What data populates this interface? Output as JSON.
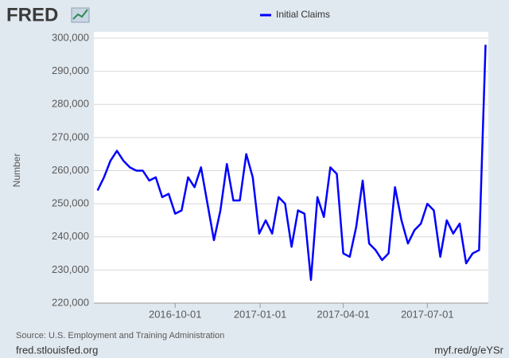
{
  "logo": "FRED",
  "footer": {
    "left": "fred.stlouisfed.org",
    "right": "myf.red/g/eYSr"
  },
  "chart_data": {
    "type": "line",
    "ylabel": "Number",
    "source": "Source: U.S. Employment and Training Administration",
    "x": [
      "2016-07-09",
      "2016-07-16",
      "2016-07-23",
      "2016-07-30",
      "2016-08-06",
      "2016-08-13",
      "2016-08-20",
      "2016-08-27",
      "2016-09-03",
      "2016-09-10",
      "2016-09-17",
      "2016-09-24",
      "2016-10-01",
      "2016-10-08",
      "2016-10-15",
      "2016-10-22",
      "2016-10-29",
      "2016-11-05",
      "2016-11-12",
      "2016-11-19",
      "2016-11-26",
      "2016-12-03",
      "2016-12-10",
      "2016-12-17",
      "2016-12-24",
      "2016-12-31",
      "2017-01-07",
      "2017-01-14",
      "2017-01-21",
      "2017-01-28",
      "2017-02-04",
      "2017-02-11",
      "2017-02-18",
      "2017-02-25",
      "2017-03-04",
      "2017-03-11",
      "2017-03-18",
      "2017-03-25",
      "2017-04-01",
      "2017-04-08",
      "2017-04-15",
      "2017-04-22",
      "2017-04-29",
      "2017-05-06",
      "2017-05-13",
      "2017-05-20",
      "2017-05-27",
      "2017-06-03",
      "2017-06-10",
      "2017-06-17",
      "2017-06-24",
      "2017-07-01",
      "2017-07-08",
      "2017-07-15",
      "2017-07-22",
      "2017-07-29",
      "2017-08-05",
      "2017-08-12",
      "2017-08-19",
      "2017-08-26",
      "2017-09-02"
    ],
    "series": [
      {
        "name": "Initial Claims",
        "color": "#0000ff",
        "values": [
          254000,
          258000,
          263000,
          266000,
          263000,
          261000,
          260000,
          260000,
          257000,
          258000,
          252000,
          253000,
          247000,
          248000,
          258000,
          255000,
          261000,
          250000,
          239000,
          248000,
          262000,
          251000,
          251000,
          265000,
          258000,
          241000,
          245000,
          241000,
          252000,
          250000,
          237000,
          248000,
          247000,
          227000,
          252000,
          246000,
          261000,
          259000,
          235000,
          234000,
          243000,
          257000,
          238000,
          236000,
          233000,
          235000,
          255000,
          245000,
          238000,
          242000,
          244000,
          250000,
          248000,
          234000,
          245000,
          241000,
          244000,
          232000,
          235000,
          236000,
          298000
        ]
      }
    ],
    "xlim": [
      "2016-07-05",
      "2017-09-05"
    ],
    "xticks": [
      "2016-10-01",
      "2017-01-01",
      "2017-04-01",
      "2017-07-01"
    ],
    "ylim": [
      220000,
      300000
    ],
    "yticks": [
      {
        "value": 220000,
        "label": "220,000"
      },
      {
        "value": 230000,
        "label": "230,000"
      },
      {
        "value": 240000,
        "label": "240,000"
      },
      {
        "value": 250000,
        "label": "250,000"
      },
      {
        "value": 260000,
        "label": "260,000"
      },
      {
        "value": 270000,
        "label": "270,000"
      },
      {
        "value": 280000,
        "label": "280,000"
      },
      {
        "value": 290000,
        "label": "290,000"
      },
      {
        "value": 300000,
        "label": "300,000"
      }
    ],
    "grid": true
  }
}
